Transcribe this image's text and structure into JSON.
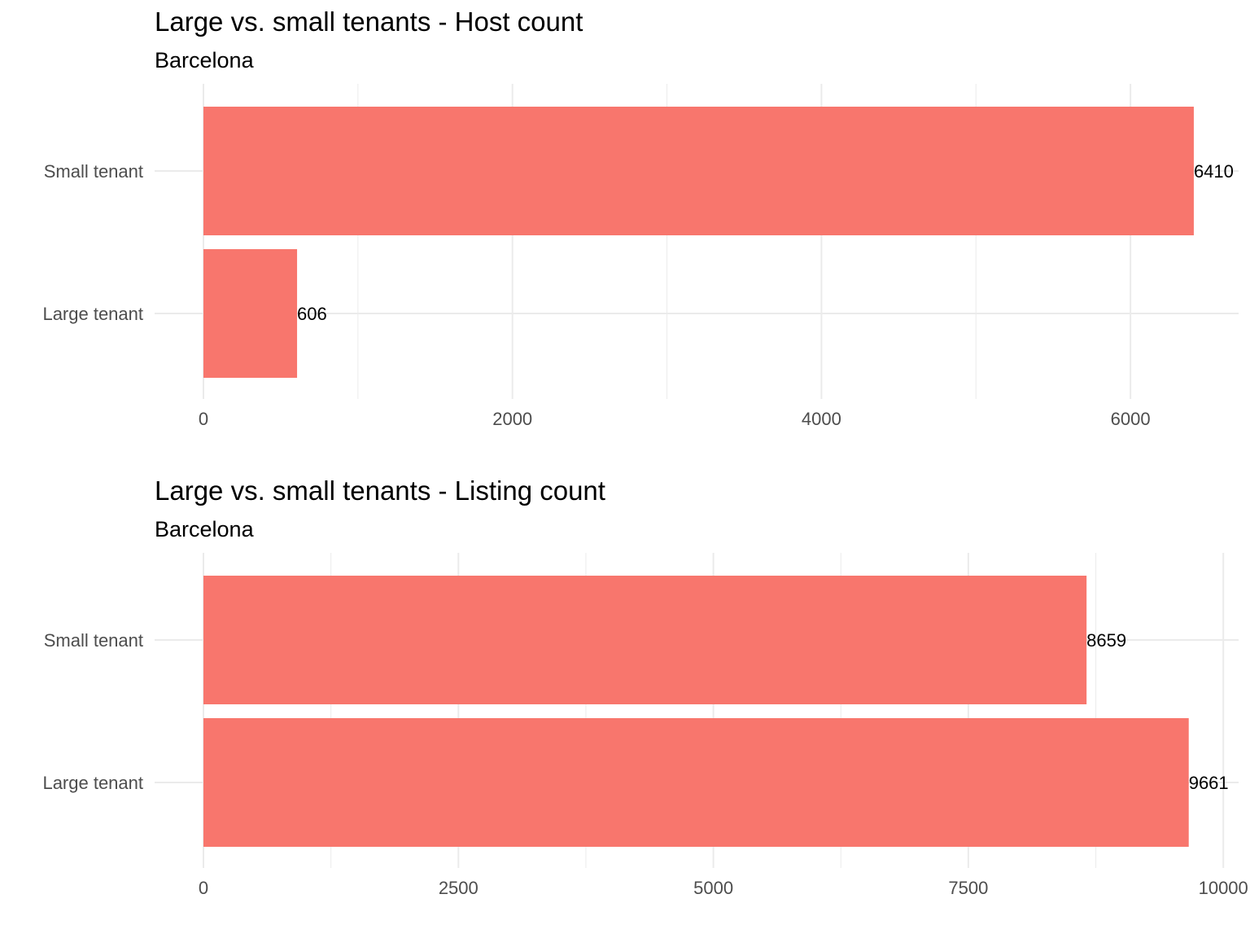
{
  "chart_data": [
    {
      "type": "bar",
      "orientation": "horizontal",
      "title": "Large vs. small tenants - Host count",
      "subtitle": "Barcelona",
      "xlabel": "",
      "ylabel": "",
      "categories": [
        "Small tenant",
        "Large tenant"
      ],
      "values": [
        6410,
        606
      ],
      "data_labels": [
        "6410",
        "606"
      ],
      "xlim": [
        0,
        6700
      ],
      "x_ticks": [
        0,
        2000,
        4000,
        6000
      ],
      "x_tick_labels": [
        "0",
        "2000",
        "4000",
        "6000"
      ],
      "x_minor_ticks": [
        1000,
        3000,
        5000
      ],
      "grid": true,
      "legend": "none",
      "bar_color": "#F8766D"
    },
    {
      "type": "bar",
      "orientation": "horizontal",
      "title": "Large vs. small tenants - Listing count",
      "subtitle": "Barcelona",
      "xlabel": "",
      "ylabel": "",
      "categories": [
        "Small tenant",
        "Large tenant"
      ],
      "values": [
        8659,
        9661
      ],
      "data_labels": [
        "8659",
        "9661"
      ],
      "xlim": [
        0,
        10150
      ],
      "x_ticks": [
        0,
        2500,
        5000,
        7500,
        10000
      ],
      "x_tick_labels": [
        "0",
        "2500",
        "5000",
        "7500",
        "10000"
      ],
      "x_minor_ticks": [
        1250,
        3750,
        6250,
        8750
      ],
      "grid": true,
      "legend": "none",
      "bar_color": "#F8766D"
    }
  ]
}
